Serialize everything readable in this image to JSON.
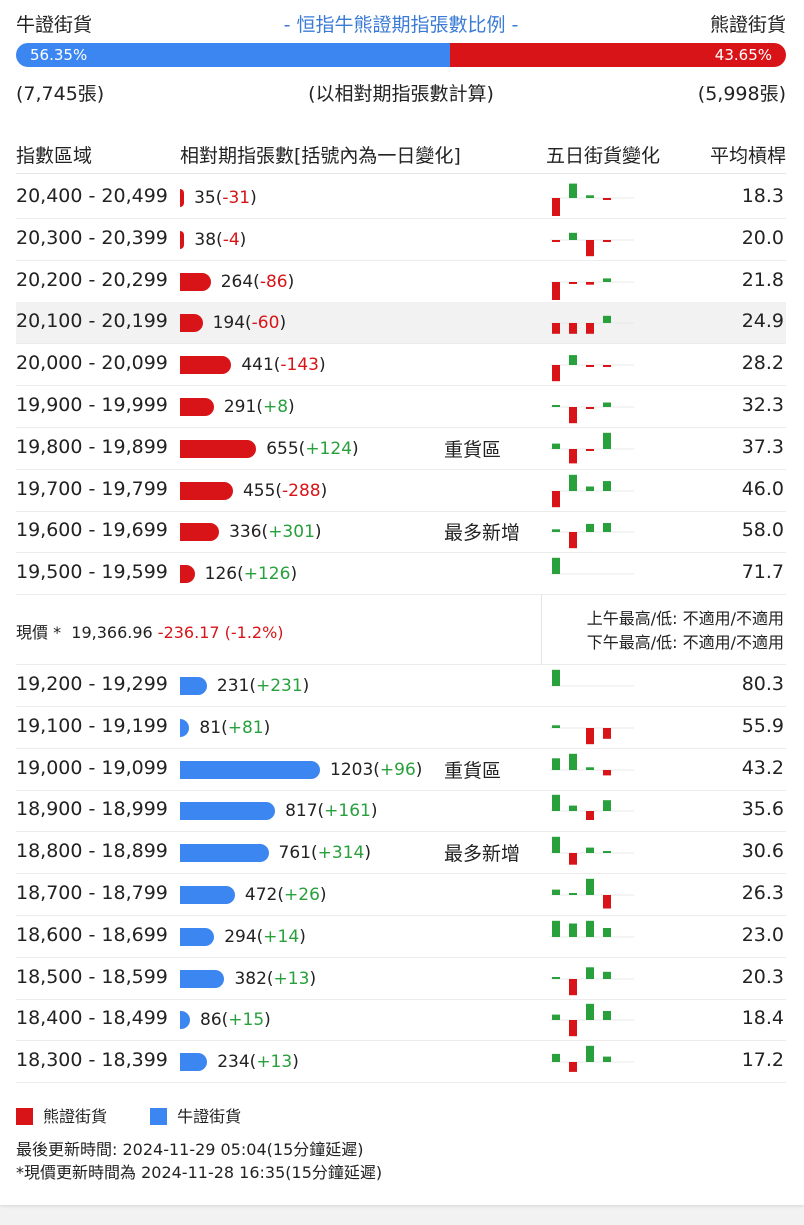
{
  "top": {
    "bull_label": "牛證街貨",
    "title": "- 恒指牛熊證期指張數比例 -",
    "bear_label": "熊證街貨",
    "bull_pct": "56.35%",
    "bear_pct": "43.65%",
    "bull_fraction": 0.5635,
    "bull_count": "(7,745張)",
    "calc_note": "(以相對期指張數計算)",
    "bear_count": "(5,998張)"
  },
  "header": {
    "range": "指數區域",
    "contracts": "相對期指張數[括號內為一日變化]",
    "five_day": "五日街貨變化",
    "avg_leverage": "平均槓桿"
  },
  "colors": {
    "bear": "#d81418",
    "bull": "#3b86f0",
    "positive": "#28a03c",
    "negative": "#d81418"
  },
  "bear_rows": [
    {
      "range": "20,400 - 20,499",
      "count": "35",
      "change": "-31",
      "tag": "",
      "avg": "18.3",
      "value": 35,
      "spark": [
        -2,
        1.6,
        0.3,
        -0.2,
        0
      ]
    },
    {
      "range": "20,300 - 20,399",
      "count": "38",
      "change": "-4",
      "tag": "",
      "avg": "20.0",
      "value": 38,
      "spark": [
        -0.2,
        0.8,
        -1.8,
        -0.1,
        0
      ]
    },
    {
      "range": "20,200 - 20,299",
      "count": "264",
      "change": "-86",
      "tag": "",
      "avg": "21.8",
      "value": 264,
      "spark": [
        -2,
        -0.1,
        -0.3,
        0.4,
        0
      ]
    },
    {
      "range": "20,100 - 20,199",
      "count": "194",
      "change": "-60",
      "tag": "",
      "avg": "24.9",
      "value": 194,
      "spark": [
        -1.2,
        -1.2,
        -1.2,
        0.8,
        0
      ]
    },
    {
      "range": "20,000 - 20,099",
      "count": "441",
      "change": "-143",
      "tag": "",
      "avg": "28.2",
      "value": 441,
      "spark": [
        -1.8,
        1.1,
        -0.2,
        -0.1,
        0
      ]
    },
    {
      "range": "19,900 - 19,999",
      "count": "291",
      "change": "+8",
      "tag": "",
      "avg": "32.3",
      "value": 291,
      "spark": [
        0.1,
        -1.8,
        -0.2,
        0.5,
        0
      ]
    },
    {
      "range": "19,800 - 19,899",
      "count": "655",
      "change": "+124",
      "tag": "重貨區",
      "avg": "37.3",
      "value": 655,
      "spark": [
        0.6,
        -1.6,
        -0.1,
        1.8,
        0
      ]
    },
    {
      "range": "19,700 - 19,799",
      "count": "455",
      "change": "-288",
      "tag": "",
      "avg": "46.0",
      "value": 455,
      "spark": [
        -1.8,
        1.8,
        0.5,
        1.1,
        0
      ]
    },
    {
      "range": "19,600 - 19,699",
      "count": "336",
      "change": "+301",
      "tag": "最多新增",
      "avg": "58.0",
      "value": 336,
      "spark": [
        0.3,
        -1.8,
        0.9,
        1.0,
        0
      ]
    },
    {
      "range": "19,500 - 19,599",
      "count": "126",
      "change": "+126",
      "tag": "",
      "avg": "71.7",
      "value": 126,
      "spark": [
        1.8,
        0,
        0,
        0,
        0
      ]
    }
  ],
  "price": {
    "label": "現價 *",
    "value": "19,366.96",
    "change": "-236.17 (-1.2%)",
    "am": "上午最高/低: 不適用/不適用",
    "pm": "下午最高/低: 不適用/不適用"
  },
  "bull_rows": [
    {
      "range": "19,200 - 19,299",
      "count": "231",
      "change": "+231",
      "tag": "",
      "avg": "80.3",
      "value": 231,
      "spark": [
        1.8,
        0,
        0,
        0,
        0
      ]
    },
    {
      "range": "19,100 - 19,199",
      "count": "81",
      "change": "+81",
      "tag": "",
      "avg": "55.9",
      "value": 81,
      "spark": [
        0.3,
        0,
        -1.8,
        -1.2,
        0
      ]
    },
    {
      "range": "19,000 - 19,099",
      "count": "1203",
      "change": "+96",
      "tag": "重貨區",
      "avg": "43.2",
      "value": 1203,
      "spark": [
        1.3,
        1.8,
        0.3,
        -0.6,
        0
      ]
    },
    {
      "range": "18,900 - 18,999",
      "count": "817",
      "change": "+161",
      "tag": "",
      "avg": "35.6",
      "value": 817,
      "spark": [
        1.8,
        0.6,
        -1.0,
        1.2,
        0
      ]
    },
    {
      "range": "18,800 - 18,899",
      "count": "761",
      "change": "+314",
      "tag": "最多新增",
      "avg": "30.6",
      "value": 761,
      "spark": [
        1.8,
        -1.3,
        0.6,
        0.1,
        0
      ]
    },
    {
      "range": "18,700 - 18,799",
      "count": "472",
      "change": "+26",
      "tag": "",
      "avg": "26.3",
      "value": 472,
      "spark": [
        0.6,
        0.2,
        1.8,
        -1.5,
        0
      ]
    },
    {
      "range": "18,600 - 18,699",
      "count": "294",
      "change": "+14",
      "tag": "",
      "avg": "23.0",
      "value": 294,
      "spark": [
        1.8,
        1.5,
        1.8,
        1.0,
        0
      ]
    },
    {
      "range": "18,500 - 18,599",
      "count": "382",
      "change": "+13",
      "tag": "",
      "avg": "20.3",
      "value": 382,
      "spark": [
        0.1,
        -1.8,
        1.3,
        0.8,
        0
      ]
    },
    {
      "range": "18,400 - 18,499",
      "count": "86",
      "change": "+15",
      "tag": "",
      "avg": "18.4",
      "value": 86,
      "spark": [
        0.6,
        -1.8,
        1.8,
        1.0,
        0
      ]
    },
    {
      "range": "18,300 - 18,399",
      "count": "234",
      "change": "+13",
      "tag": "",
      "avg": "17.2",
      "value": 234,
      "spark": [
        0.9,
        -1.1,
        1.8,
        0.6,
        0
      ]
    }
  ],
  "legend": {
    "bear": "熊證街貨",
    "bull": "牛證街貨"
  },
  "footer": {
    "updated": "最後更新時間: 2024-11-29 05:04(15分鐘延遲)",
    "price_updated": "*現價更新時間為 2024-11-28 16:35(15分鐘延遲)"
  }
}
